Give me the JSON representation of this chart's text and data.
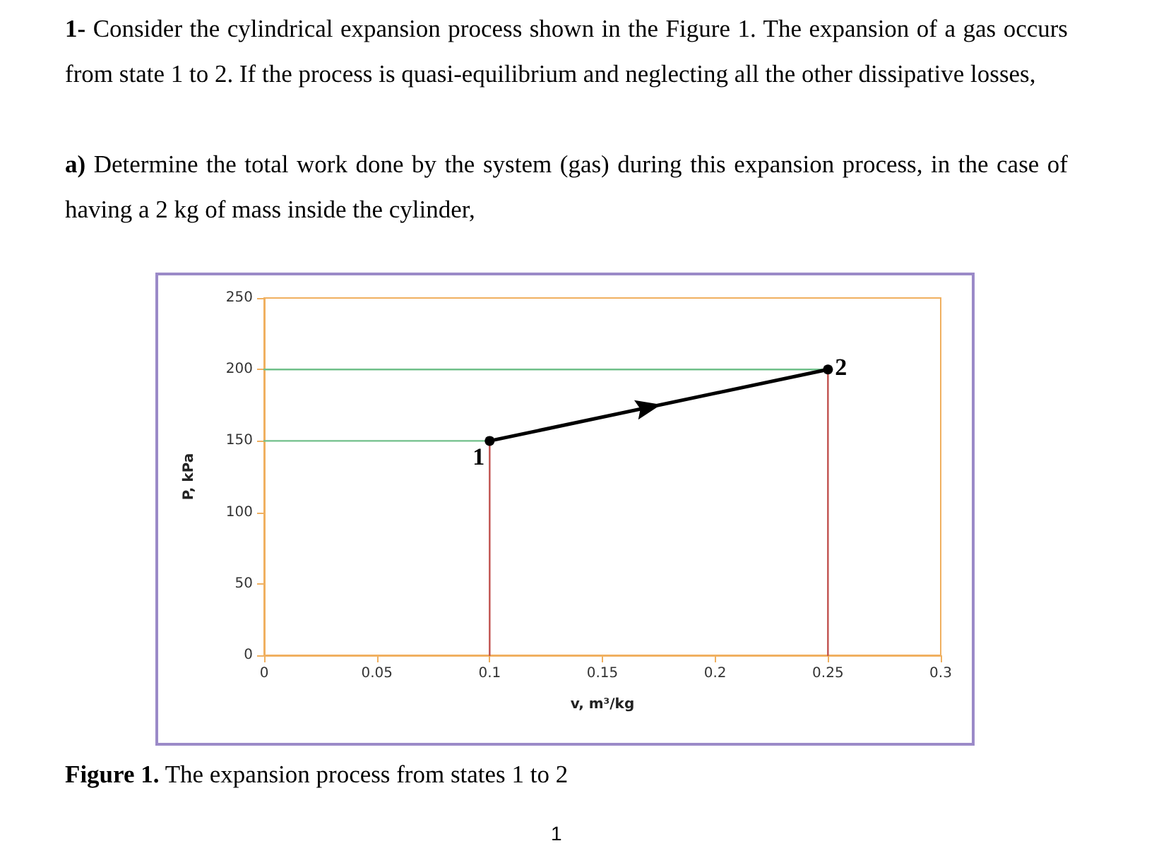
{
  "chart_data": {
    "type": "line",
    "title": "1- Consider the cylindrical expansion process shown in the Figure 1. The expansion of a gas occurs from state 1 to 2. If the process is quasi-equilibrium and neglecting all the other dissipative losses,",
    "subtitle": "a) Determine the total work done by the system (gas) during this expansion process, in the case of having a 2 kg of mass inside the cylinder,",
    "xlabel": "v, m³/kg",
    "ylabel": "P, kPa",
    "series": [
      {
        "x": [
          0.1,
          0.25
        ],
        "values": [
          150,
          200
        ],
        "color": "#000000",
        "marker": "circle"
      },
      {
        "x": [
          0,
          0.1
        ],
        "values": [
          150,
          150
        ],
        "color": "#70c08a",
        "marker": "none"
      },
      {
        "x": [
          0,
          0.25
        ],
        "values": [
          200,
          200
        ],
        "color": "#70c08a",
        "marker": "none"
      },
      {
        "x": [
          0.1,
          0.1
        ],
        "values": [
          0,
          150
        ],
        "color": "#c0504d",
        "marker": "none"
      },
      {
        "x": [
          0.25,
          0.25
        ],
        "values": [
          0,
          200
        ],
        "color": "#c0504d",
        "marker": "none"
      }
    ],
    "xlim": [
      0,
      0.3
    ],
    "xticks": [
      0,
      0.05,
      0.1,
      0.15,
      0.2,
      0.25,
      0.3
    ],
    "ylim": [
      0,
      250
    ],
    "yticks": [
      0,
      50,
      100,
      150,
      200,
      250
    ],
    "grid": false,
    "line_style": "solid",
    "annotations": [
      {
        "text": "1",
        "x": 0.1,
        "y": 150
      },
      {
        "text": "2",
        "x": 0.25,
        "y": 200
      },
      "Figure 1. The expansion process from states 1 to 2",
      "1"
    ]
  }
}
